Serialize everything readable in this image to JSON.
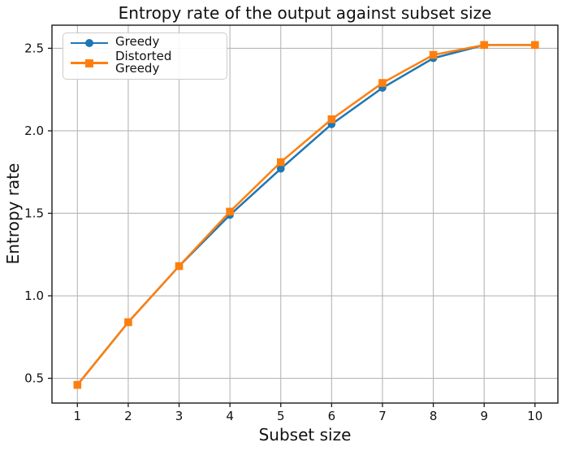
{
  "chart_data": {
    "type": "line",
    "title": "Entropy rate of the output against subset size",
    "xlabel": "Subset size",
    "ylabel": "Entropy rate",
    "x": [
      1,
      2,
      3,
      4,
      5,
      6,
      7,
      8,
      9,
      10
    ],
    "series": [
      {
        "name": "Greedy",
        "color": "#1f77b4",
        "marker": "circle",
        "values": [
          0.46,
          0.84,
          1.18,
          1.49,
          1.77,
          2.04,
          2.26,
          2.44,
          2.52,
          2.52
        ]
      },
      {
        "name": "Distorted Greedy",
        "color": "#ff7f0e",
        "marker": "square",
        "values": [
          0.46,
          0.84,
          1.18,
          1.51,
          1.81,
          2.07,
          2.29,
          2.46,
          2.52,
          2.52
        ]
      }
    ],
    "xticks": [
      1,
      2,
      3,
      4,
      5,
      6,
      7,
      8,
      9,
      10
    ],
    "xtick_labels": [
      "1",
      "2",
      "3",
      "4",
      "5",
      "6",
      "7",
      "8",
      "9",
      "10"
    ],
    "yticks": [
      0.5,
      1.0,
      1.5,
      2.0,
      2.5
    ],
    "ytick_labels": [
      "0.5",
      "1.0",
      "1.5",
      "2.0",
      "2.5"
    ],
    "xlim": [
      0.5,
      10.45
    ],
    "ylim": [
      0.35,
      2.64
    ],
    "grid": true,
    "legend_position": "upper-left",
    "colors": {
      "grid": "#b7b7b7",
      "axis": "#1a1a1a",
      "tick_text": "#111111",
      "legend_border": "#cccccc",
      "background": "#ffffff"
    }
  }
}
